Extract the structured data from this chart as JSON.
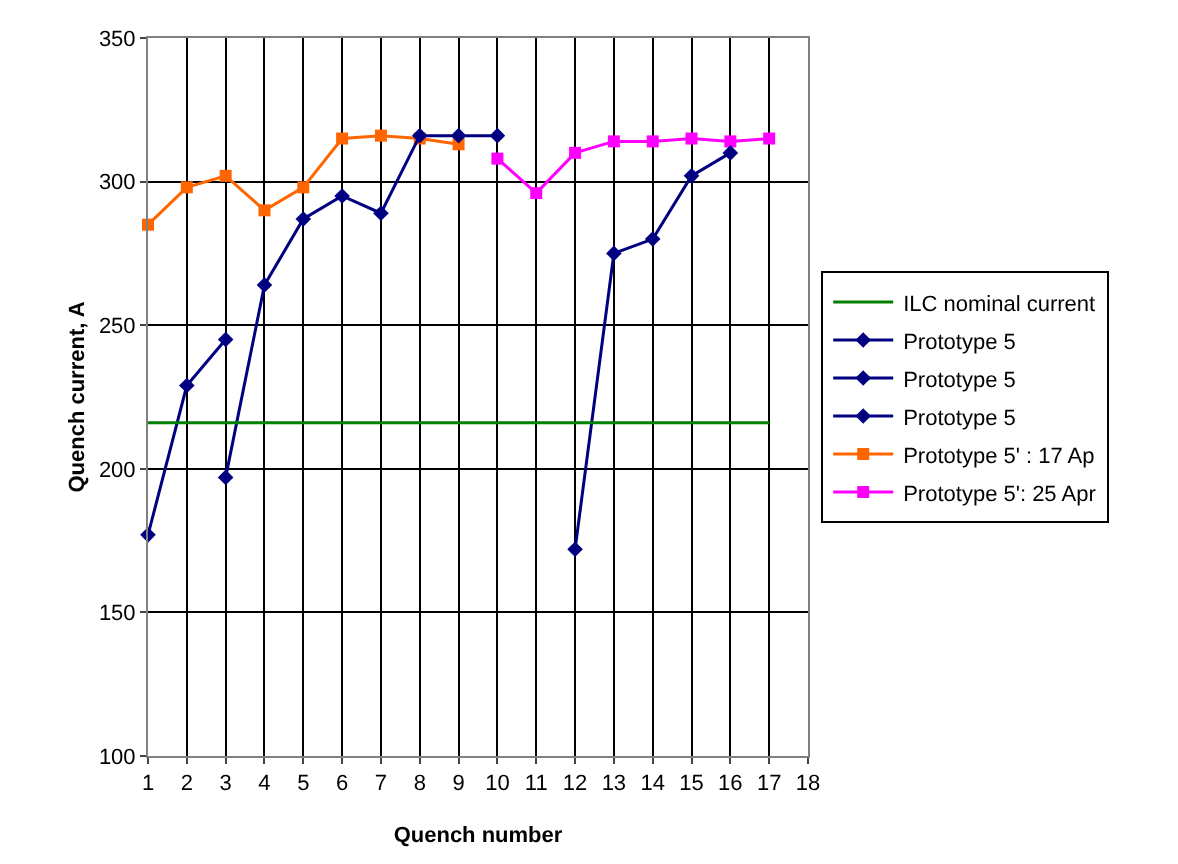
{
  "chart_data": {
    "type": "line",
    "xlabel": "Quench number",
    "ylabel": "Quench current, A",
    "xlim": [
      1,
      18
    ],
    "xticks": [
      1,
      2,
      3,
      4,
      5,
      6,
      7,
      8,
      9,
      10,
      11,
      12,
      13,
      14,
      15,
      16,
      17,
      18
    ],
    "ylim": [
      100,
      350
    ],
    "yticks": [
      100,
      150,
      200,
      250,
      300,
      350
    ],
    "grid": true,
    "legend": "right",
    "line_style": "solid",
    "series": [
      {
        "name": "ILC nominal current",
        "color": "#008000",
        "marker": "none",
        "x": [
          1,
          17
        ],
        "values": [
          216,
          216
        ]
      },
      {
        "name": "Prototype 5",
        "color": "#000080",
        "marker": "diamond",
        "x": [
          1,
          2,
          3
        ],
        "values": [
          177,
          229,
          245
        ]
      },
      {
        "name": "Prototype 5",
        "color": "#000080",
        "marker": "diamond",
        "x": [
          3,
          4,
          5,
          6,
          7,
          8,
          9,
          10
        ],
        "values": [
          197,
          264,
          287,
          295,
          289,
          316,
          316,
          316
        ]
      },
      {
        "name": "Prototype 5",
        "color": "#000080",
        "marker": "diamond",
        "x": [
          12,
          13,
          14,
          15,
          16
        ],
        "values": [
          172,
          275,
          280,
          302,
          310
        ]
      },
      {
        "name": "Prototype 5' : 17 Ap",
        "color": "#ff6600",
        "marker": "square",
        "x": [
          1,
          2,
          3,
          4,
          5,
          6,
          7,
          8,
          9
        ],
        "values": [
          285,
          298,
          302,
          290,
          298,
          315,
          316,
          315,
          313
        ]
      },
      {
        "name": "Prototype 5': 25 Apr",
        "color": "#ff00ff",
        "marker": "square",
        "x": [
          10,
          11,
          12,
          13,
          14,
          15,
          16,
          17
        ],
        "values": [
          308,
          296,
          310,
          314,
          314,
          315,
          314,
          315
        ]
      }
    ]
  }
}
